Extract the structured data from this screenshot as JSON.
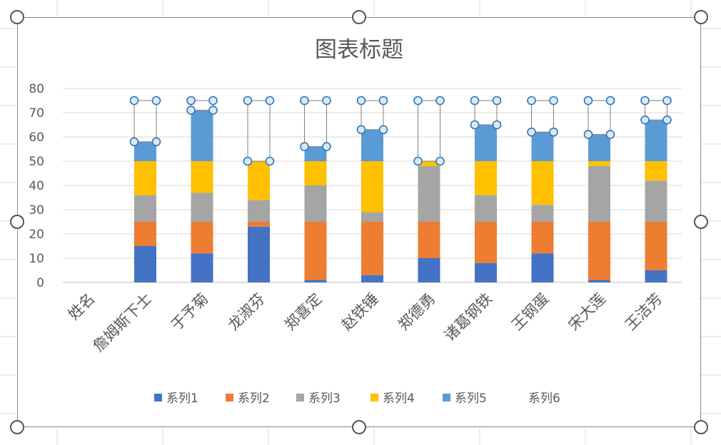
{
  "chart_data": {
    "type": "bar",
    "stacked": true,
    "title": "图表标题",
    "categories": [
      "姓名",
      "詹姆斯下士",
      "于予菊",
      "龙淑芬",
      "郑喜定",
      "赵铁锤",
      "郑德勇",
      "诸葛钢铁",
      "王钢蛋",
      "宋大莲",
      "王洁芳"
    ],
    "series": [
      {
        "name": "系列1",
        "color": "#4472c4",
        "values": [
          null,
          15,
          12,
          23,
          1,
          3,
          10,
          8,
          12,
          1,
          5
        ]
      },
      {
        "name": "系列2",
        "color": "#ed7d31",
        "values": [
          null,
          10,
          13,
          2,
          24,
          22,
          15,
          17,
          13,
          24,
          20
        ]
      },
      {
        "name": "系列3",
        "color": "#a5a5a5",
        "values": [
          null,
          11,
          12,
          9,
          15,
          4,
          23,
          11,
          7,
          23,
          17
        ]
      },
      {
        "name": "系列4",
        "color": "#ffc000",
        "values": [
          null,
          14,
          13,
          16,
          10,
          21,
          2,
          14,
          18,
          2,
          8
        ]
      },
      {
        "name": "系列5",
        "color": "#5b9bd5",
        "values": [
          null,
          8,
          21,
          0,
          6,
          13,
          0,
          15,
          12,
          11,
          17
        ]
      },
      {
        "name": "系列6",
        "color": "none",
        "values": [
          null,
          17,
          4,
          25,
          19,
          12,
          25,
          10,
          13,
          14,
          8
        ]
      }
    ],
    "ylim": [
      0,
      80
    ],
    "yticks": [
      0,
      10,
      20,
      30,
      40,
      50,
      60,
      70,
      80
    ],
    "grid": true,
    "legend_position": "bottom"
  }
}
